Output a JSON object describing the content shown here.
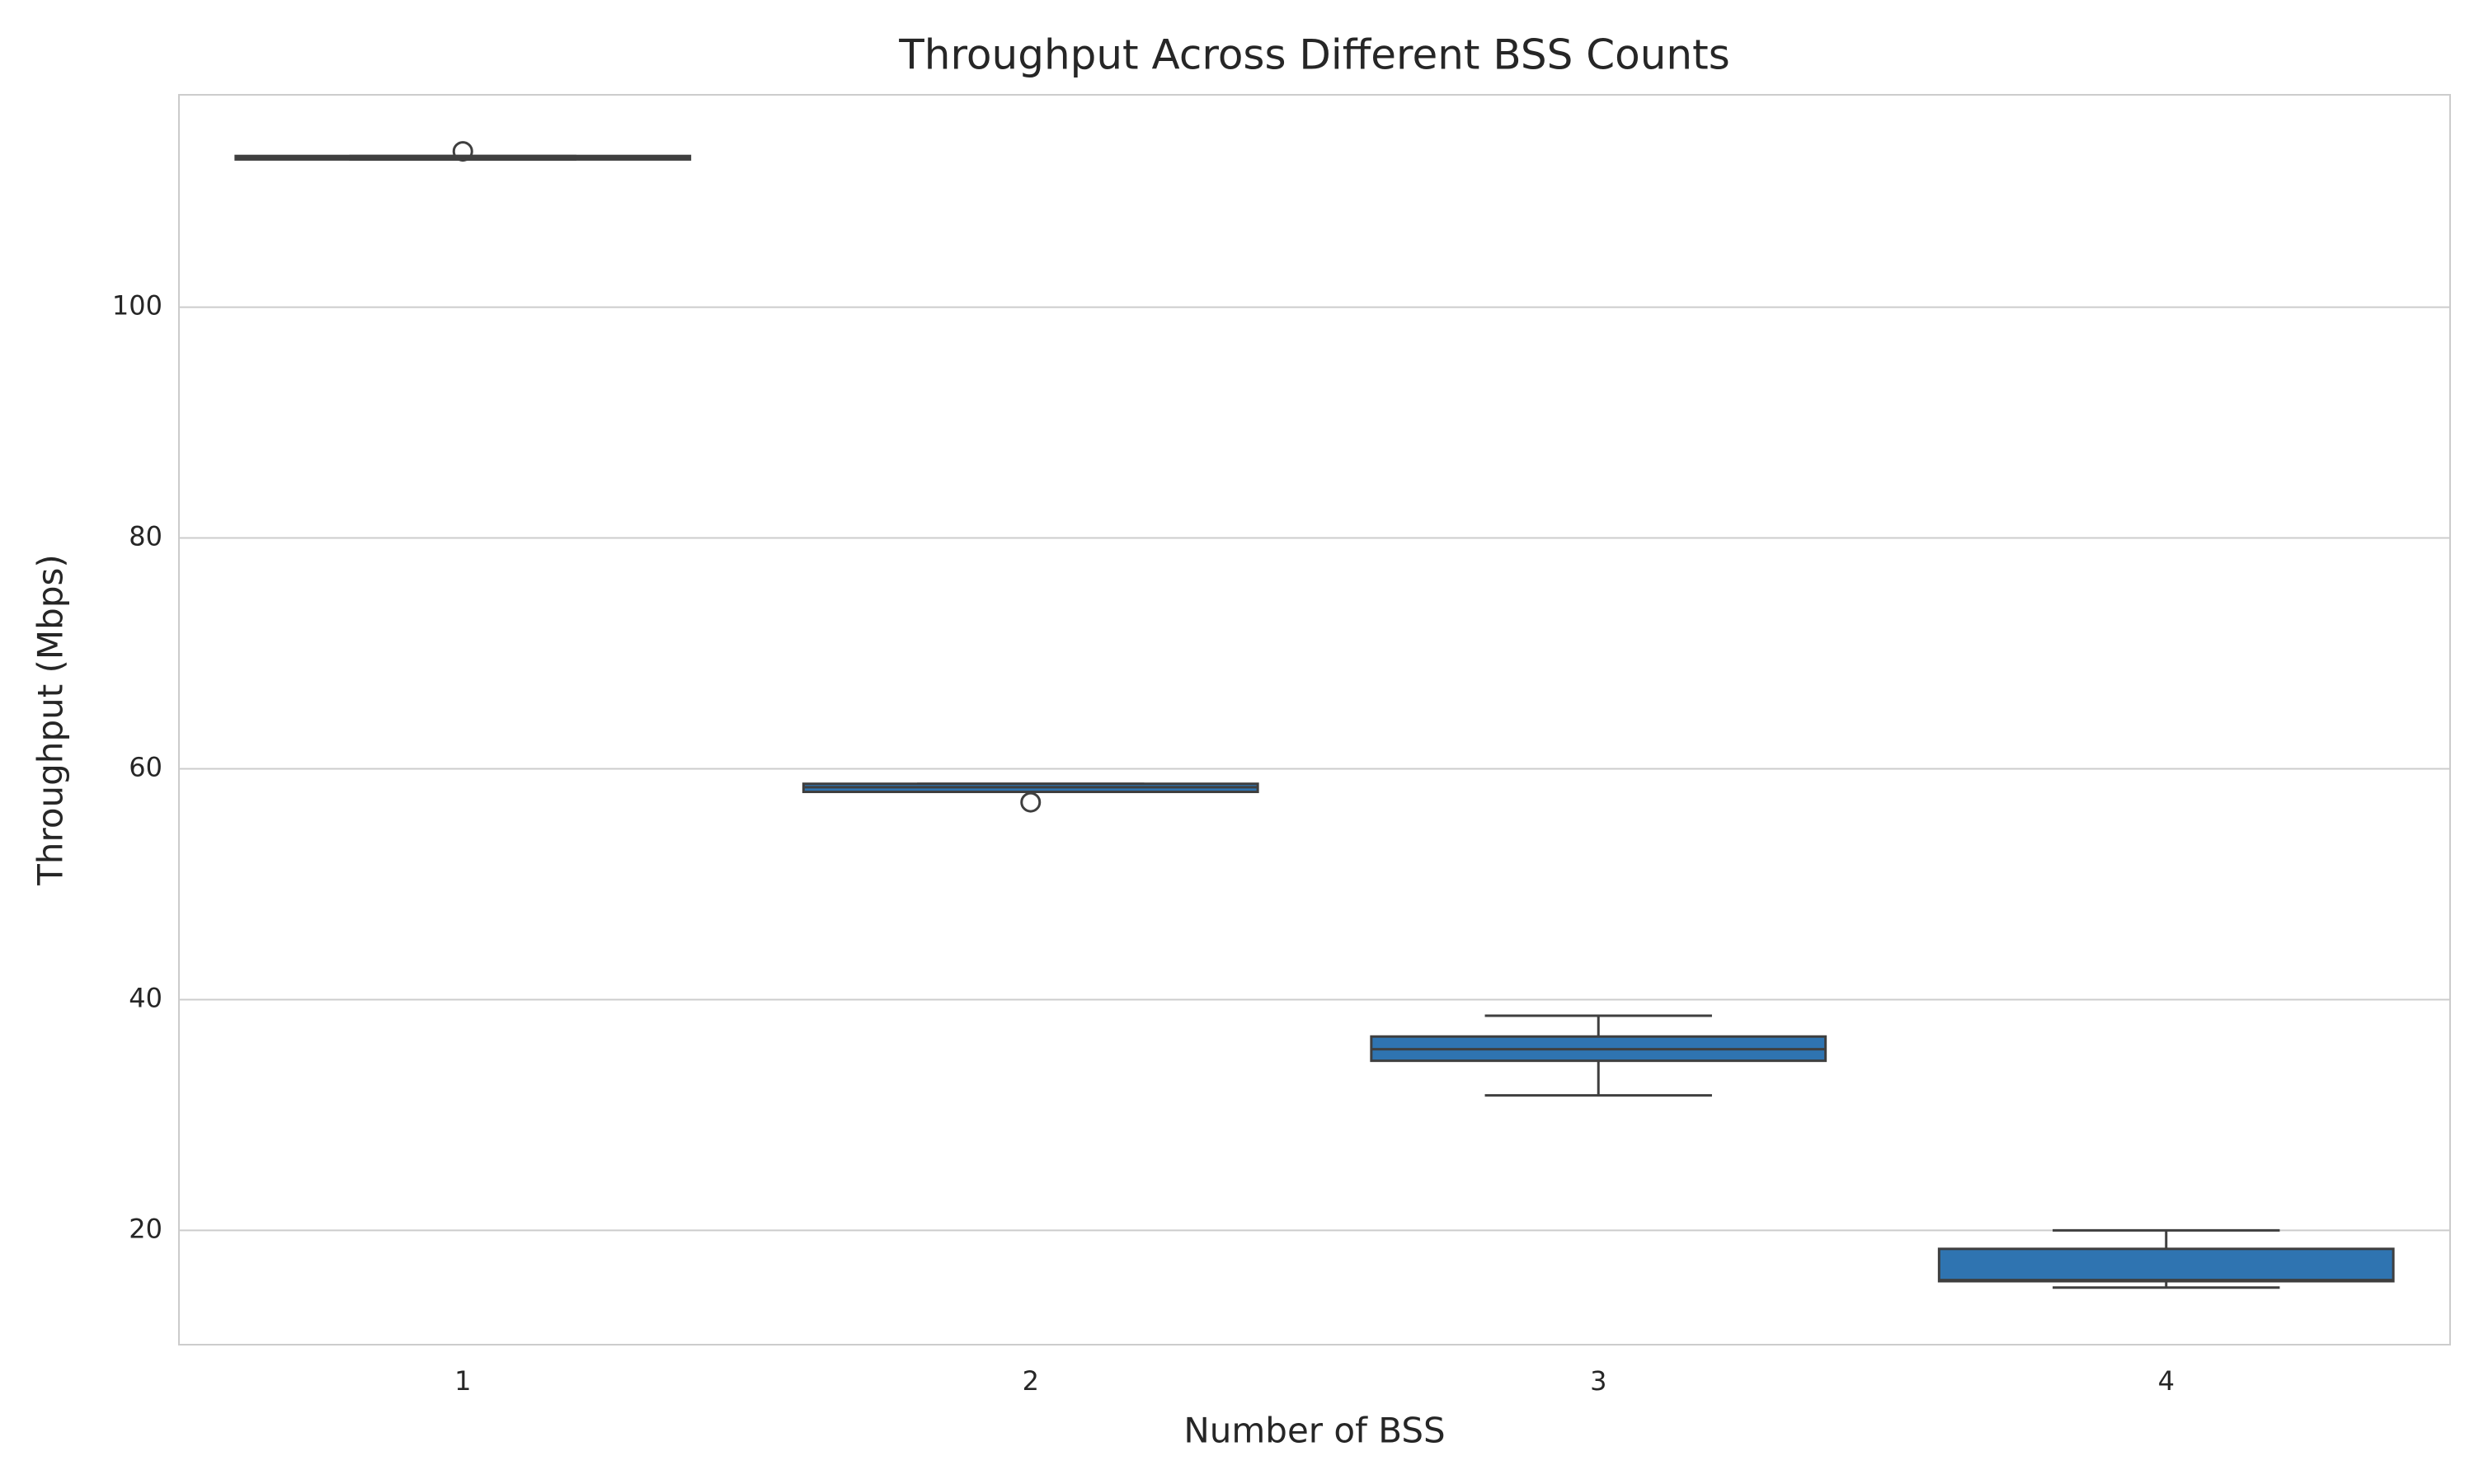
{
  "chart_data": {
    "type": "box",
    "title": "Throughput Across Different BSS Counts",
    "x_label": "Number of BSS",
    "y_label": "Throughput (Mbps)",
    "categories": [
      "1",
      "2",
      "3",
      "4"
    ],
    "color": "#2f74b1",
    "boxes": [
      {
        "whislo": 112.8,
        "q1": 112.8,
        "med": 112.9,
        "q3": 113.1,
        "whishi": 113.1,
        "fliers": [
          113.5
        ]
      },
      {
        "whislo": 58.0,
        "q1": 58.0,
        "med": 58.4,
        "q3": 58.7,
        "whishi": 58.7,
        "fliers": [
          57.1
        ]
      },
      {
        "whislo": 31.7,
        "q1": 34.7,
        "med": 35.7,
        "q3": 36.8,
        "whishi": 38.6,
        "fliers": []
      },
      {
        "whislo": 15.05,
        "q1": 15.6,
        "med": 15.7,
        "q3": 18.4,
        "whishi": 20.0,
        "fliers": []
      }
    ],
    "ylim": [
      10.1,
      118.4
    ],
    "yticks": [
      20,
      40,
      60,
      80,
      100
    ],
    "grid": true
  }
}
